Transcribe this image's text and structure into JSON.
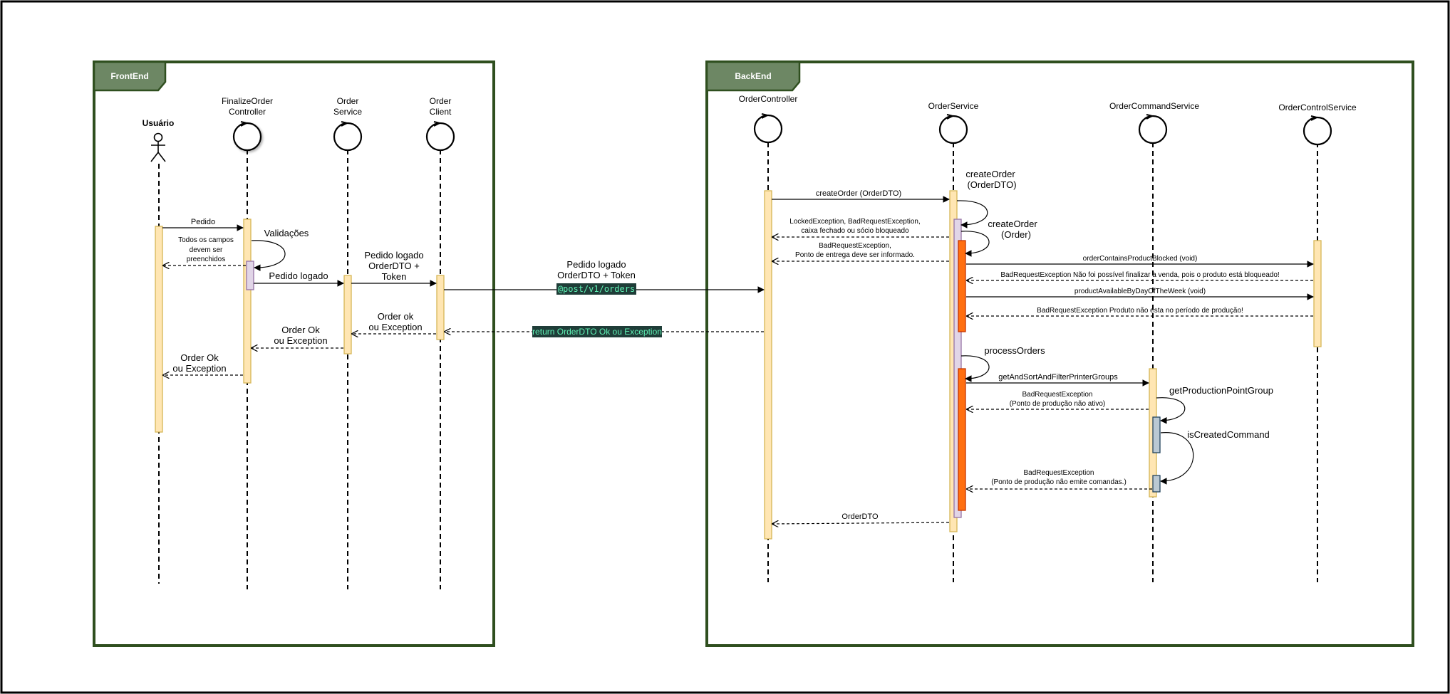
{
  "frames": {
    "frontend": {
      "tab_label": "FrontEnd"
    },
    "backend": {
      "tab_label": "BackEnd"
    }
  },
  "actors": {
    "user": "Usuário"
  },
  "lifelines": {
    "finalize_controller": [
      "FinalizeOrder",
      "Controller"
    ],
    "order_service_fe": [
      "Order",
      "Service"
    ],
    "order_client": [
      "Order",
      "Client"
    ],
    "order_controller": "OrderController",
    "order_service": "OrderService",
    "order_command_service": "OrderCommandService",
    "order_control_service": "OrderControlService"
  },
  "messages": {
    "pedido": "Pedido",
    "validacoes": "Validações",
    "todos_campos": [
      "Todos os campos",
      "devem ser",
      "preenchidos"
    ],
    "pedido_logado_1": "Pedido logado",
    "pedido_logado_2": [
      "Pedido logado",
      "OrderDTO +",
      "Token"
    ],
    "order_ok_client": [
      "Order ok",
      "ou Exception"
    ],
    "order_ok_service": [
      "Order Ok",
      "ou Exception"
    ],
    "order_ok_user": [
      "Order Ok",
      "ou Exception"
    ],
    "cross_request": [
      "Pedido logado",
      "OrderDTO + Token"
    ],
    "cross_endpoint": "@post/v1/orders",
    "cross_return": "return OrderDTO Ok ou Exception",
    "create_order_dto": "createOrder (OrderDTO)",
    "self_create_order_dto": [
      "createOrder",
      "(OrderDTO)"
    ],
    "self_create_order": [
      "createOrder",
      "(Order)"
    ],
    "locked_exception": [
      "LockedException, BadRequestException,",
      "caixa fechado ou sócio bloqueado"
    ],
    "bad_request_ponto": [
      "BadRequestException,",
      "Ponto de entrega deve ser informado."
    ],
    "order_contains_blocked": "orderContainsProductBlocked (void)",
    "bad_request_bloqueado": "BadRequestException Não foi possível finalizar a venda, pois o produto está bloqueado!",
    "product_available": "productAvailableByDayOfTheWeek (void)",
    "bad_request_periodo": "BadRequestException Produto não esta no período de produção!",
    "process_orders": "processOrders",
    "get_and_sort": "getAndSortAndFilterPrinterGroups",
    "bad_request_nao_ativo": [
      "BadRequestException",
      "(Ponto de produção não ativo)"
    ],
    "get_production_point": "getProductionPointGroup",
    "is_created_command": "isCreatedCommand",
    "bad_request_comandas": [
      "BadRequestException",
      "(Ponto de produção não emite comandas.)"
    ],
    "order_dto_return": "OrderDTO"
  },
  "colors": {
    "frame_border": "#2f4f1f",
    "frame_tab": "#6d8764",
    "activation_fill": "#ffe6b3",
    "activation_border": "#d6b656",
    "nested_fill": "#e1d5e7",
    "nested_border": "#9673a6",
    "orange_fill": "#ff6f10",
    "orange_border": "#c73500",
    "gray_fill": "#bac8d3",
    "gray_border": "#23445d",
    "code_bg": "#1f3d38",
    "code_text": "#5ff2b5"
  }
}
